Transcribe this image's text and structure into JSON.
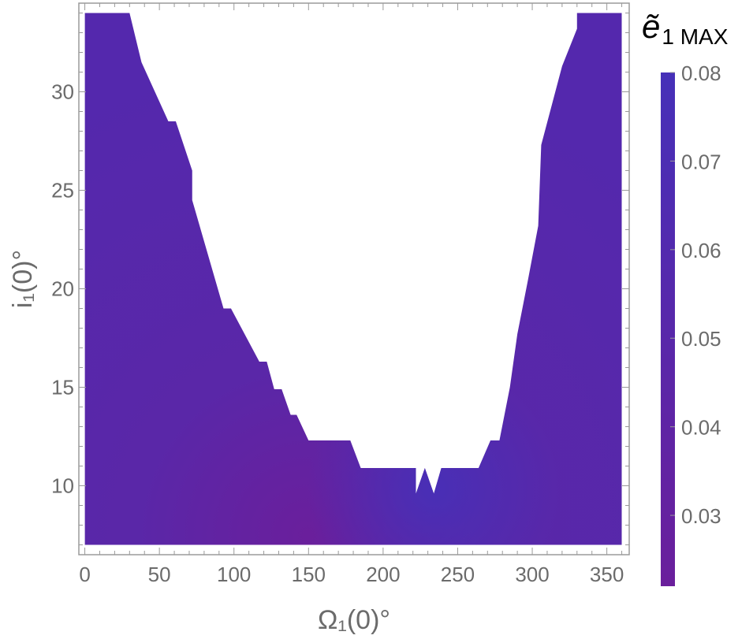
{
  "chart_data": {
    "type": "heatmap",
    "title": "",
    "xlabel": "Ω₁(0)°",
    "ylabel": "i₁(0)°",
    "xlim": [
      -4,
      365
    ],
    "ylim": [
      6.5,
      34.5
    ],
    "x_ticks": [
      0,
      50,
      100,
      150,
      200,
      250,
      300,
      350
    ],
    "y_ticks": [
      10,
      15,
      20,
      25,
      30
    ],
    "x_tick_labels": [
      "0",
      "50",
      "100",
      "150",
      "200",
      "250",
      "300",
      "350"
    ],
    "y_tick_labels": [
      "10",
      "15",
      "20",
      "25",
      "30"
    ],
    "domain_x": [
      0,
      360
    ],
    "domain_y": [
      7,
      34
    ],
    "colorbar": {
      "title": "ẽ₁ MAX",
      "title_symbol": "ẽ",
      "title_subscript": "1 MAX",
      "range": [
        0.022,
        0.08
      ],
      "ticks": [
        0.08,
        0.07,
        0.06,
        0.05,
        0.04,
        0.03
      ],
      "tick_labels": [
        "0.08",
        "0.07",
        "0.06",
        "0.05",
        "0.04",
        "0.03"
      ],
      "color_low": "#6a1f9c",
      "color_high": "#4630b8"
    },
    "colors": {
      "low": "#6a1f9c",
      "high": "#4630b8",
      "background": "#ffffff",
      "frame": "#9a9a9a"
    },
    "unstable_region_note": "white area = no data",
    "region_boundary_left": [
      [
        30,
        34
      ],
      [
        38,
        31.5
      ],
      [
        56,
        28.5
      ],
      [
        61,
        28.5
      ],
      [
        72,
        26
      ],
      [
        72,
        24.5
      ],
      [
        93,
        19
      ],
      [
        98,
        19
      ],
      [
        117,
        16.3
      ],
      [
        122,
        16.3
      ],
      [
        127,
        14.9
      ],
      [
        132,
        14.9
      ],
      [
        138,
        13.6
      ],
      [
        142,
        13.6
      ],
      [
        150,
        12.3
      ],
      [
        178,
        12.3
      ],
      [
        185,
        10.9
      ],
      [
        222,
        10.9
      ],
      [
        222,
        9.6
      ],
      [
        228,
        10.9
      ],
      [
        234,
        9.6
      ],
      [
        239,
        10.9
      ],
      [
        264,
        10.9
      ],
      [
        272,
        12.3
      ],
      [
        278,
        12.3
      ],
      [
        285,
        15
      ],
      [
        290,
        17.7
      ],
      [
        297,
        20.4
      ],
      [
        304,
        23.2
      ],
      [
        306,
        27.3
      ],
      [
        320,
        31.3
      ],
      [
        330,
        33.2
      ],
      [
        330,
        34
      ]
    ],
    "values_sample": [
      {
        "x": 0,
        "y": 7,
        "value": 0.055
      },
      {
        "x": 0,
        "y": 34,
        "value": 0.06
      },
      {
        "x": 150,
        "y": 8,
        "value": 0.035
      },
      {
        "x": 230,
        "y": 10,
        "value": 0.075
      },
      {
        "x": 360,
        "y": 7,
        "value": 0.055
      },
      {
        "x": 360,
        "y": 34,
        "value": 0.045
      }
    ]
  }
}
